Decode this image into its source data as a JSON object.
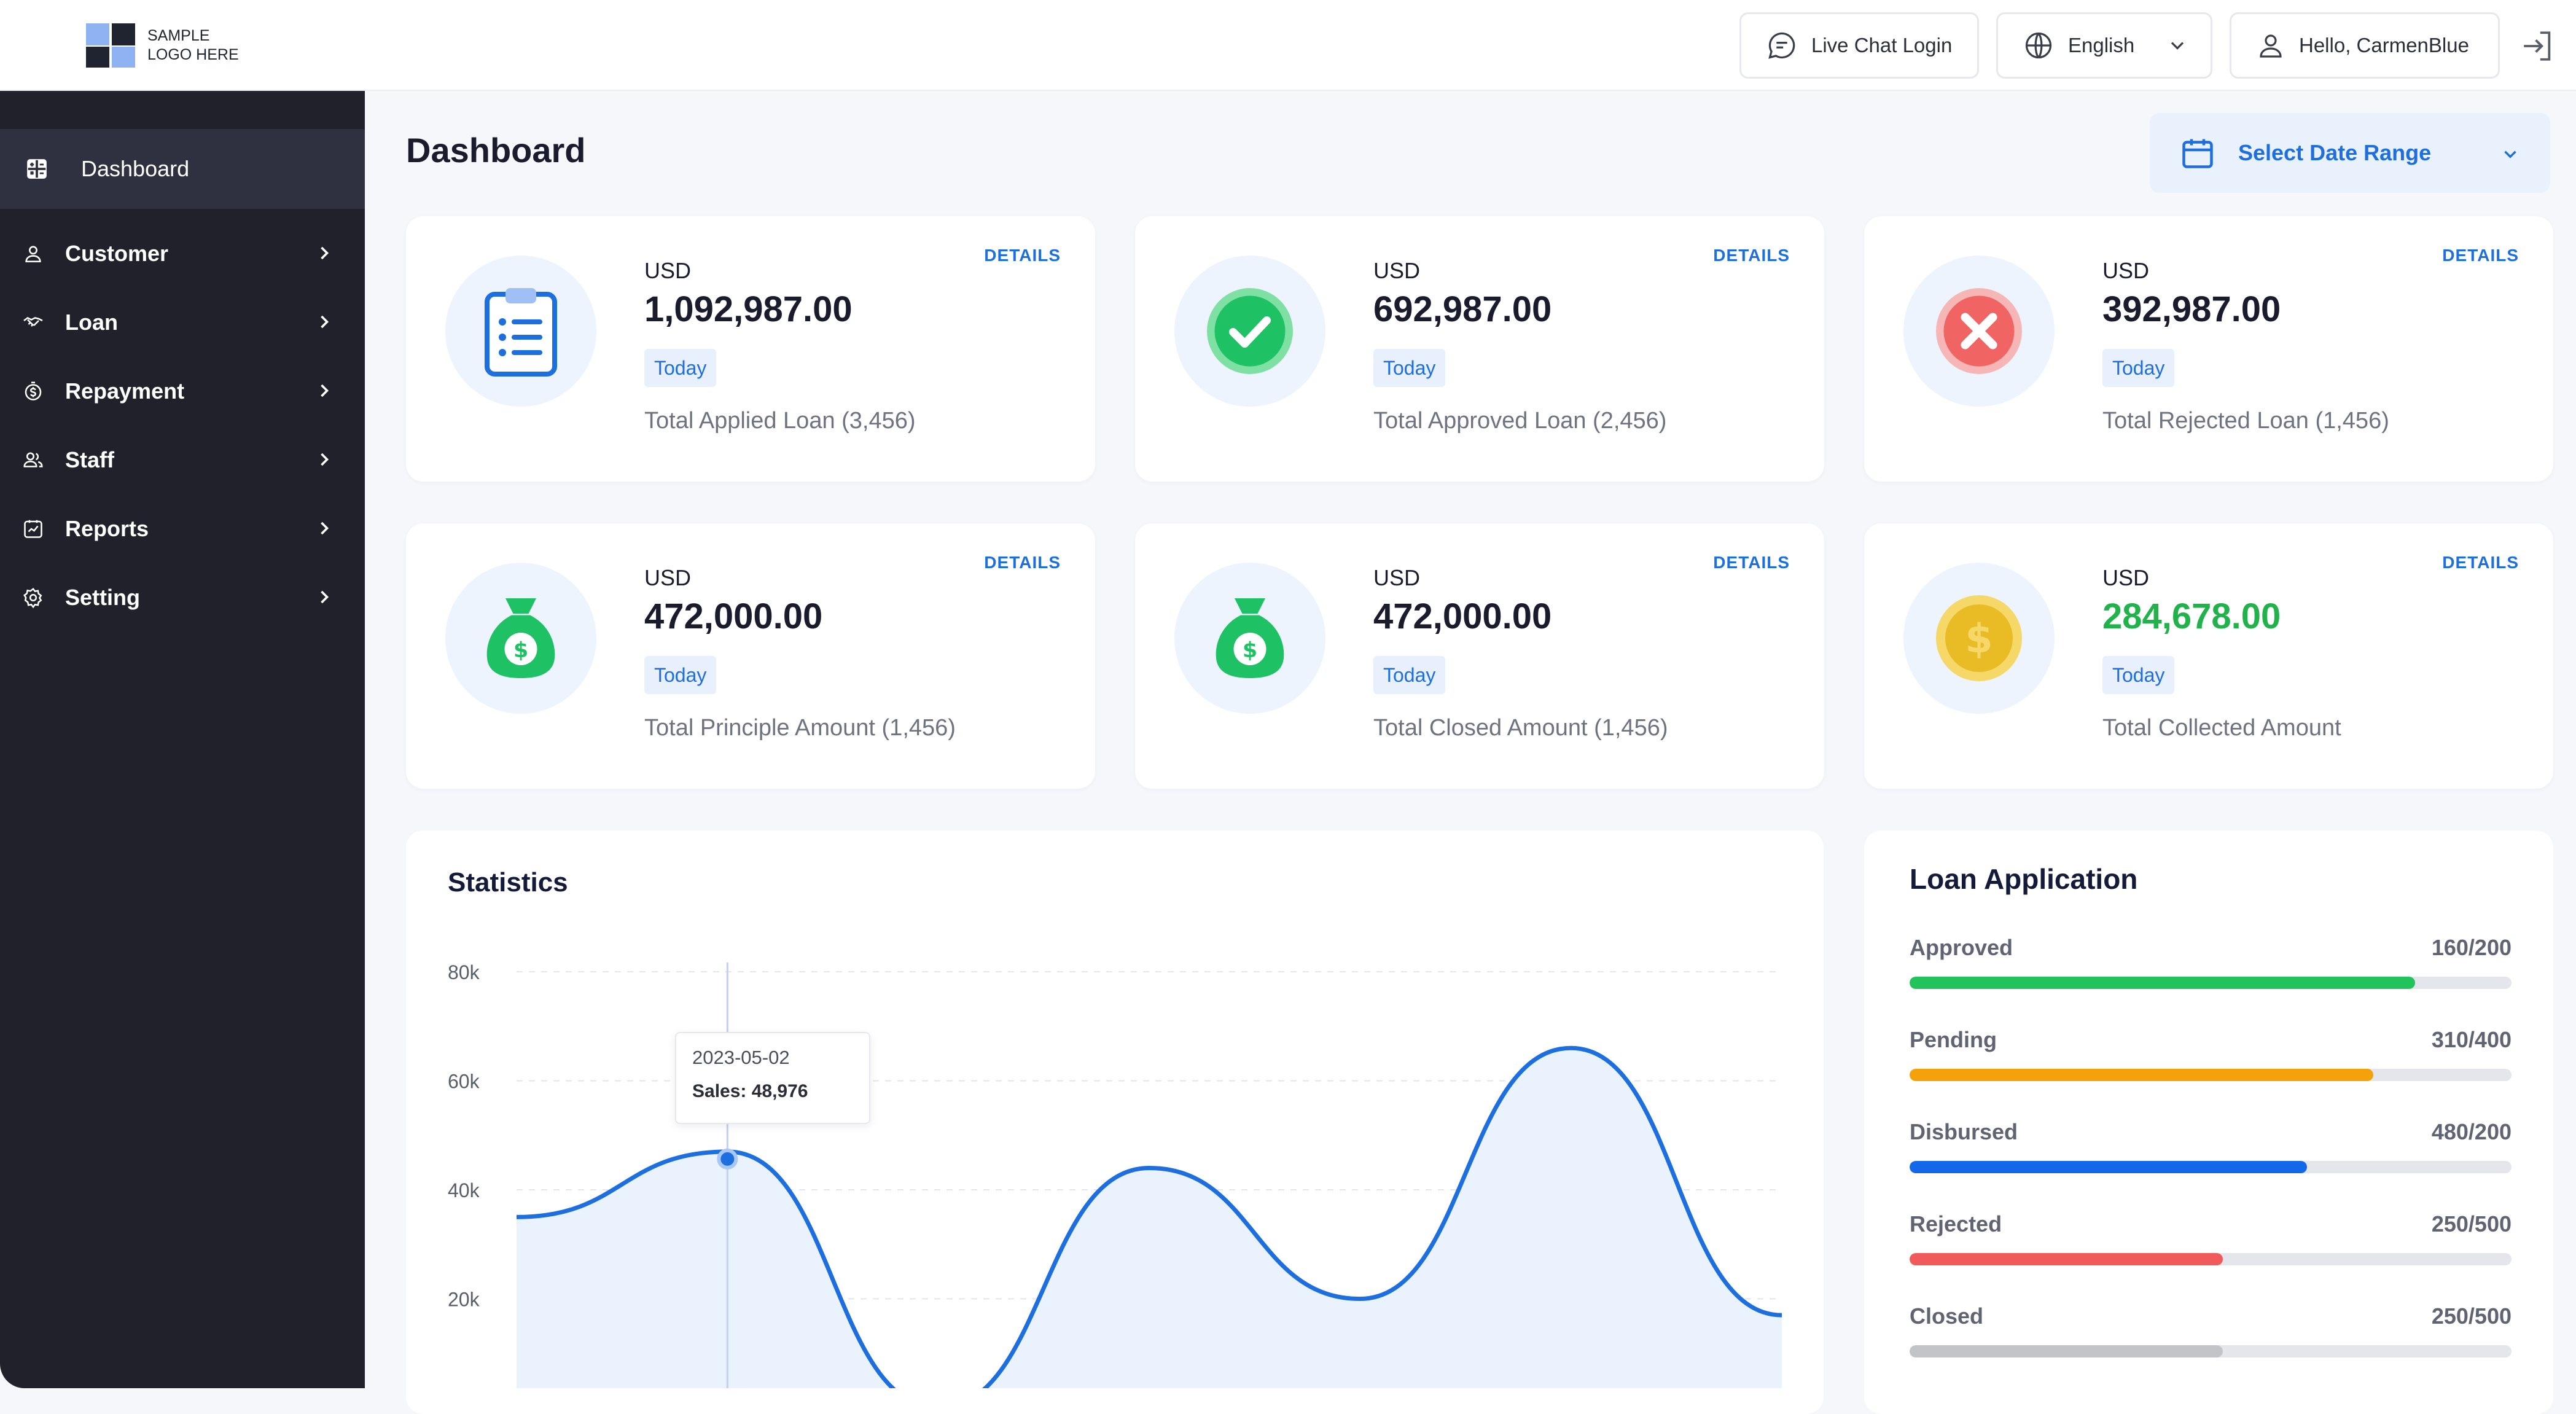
{
  "logo": {
    "text": "SAMPLE LOGO HERE",
    "colors": {
      "dark": "#1f2430",
      "light": "#8fb3f2"
    }
  },
  "topbar": {
    "live_chat_label": "Live Chat Login",
    "language_label": "English",
    "greeting_label": "Hello, CarmenBlue"
  },
  "sidebar": {
    "items": [
      {
        "label": "Dashboard",
        "icon": "dashboard-icon",
        "active": true
      },
      {
        "label": "Customer",
        "icon": "user-icon"
      },
      {
        "label": "Loan",
        "icon": "handshake-icon"
      },
      {
        "label": "Repayment",
        "icon": "dollar-icon"
      },
      {
        "label": "Staff",
        "icon": "users-icon"
      },
      {
        "label": "Reports",
        "icon": "report-icon"
      },
      {
        "label": "Setting",
        "icon": "gear-icon"
      }
    ]
  },
  "page": {
    "title": "Dashboard",
    "date_range_label": "Select Date Range"
  },
  "cards": [
    {
      "currency": "USD",
      "amount": "1,092,987.00",
      "badge": "Today",
      "description": "Total Applied Loan (3,456)",
      "details": "DETAILS",
      "icon": "clipboard-list-icon"
    },
    {
      "currency": "USD",
      "amount": "692,987.00",
      "badge": "Today",
      "description": "Total Approved Loan (2,456)",
      "details": "DETAILS",
      "icon": "check-circle-icon"
    },
    {
      "currency": "USD",
      "amount": "392,987.00",
      "badge": "Today",
      "description": "Total Rejected Loan (1,456)",
      "details": "DETAILS",
      "icon": "x-circle-icon"
    },
    {
      "currency": "USD",
      "amount": "472,000.00",
      "badge": "Today",
      "description": "Total Principle Amount (1,456)",
      "details": "DETAILS",
      "icon": "money-bag-icon"
    },
    {
      "currency": "USD",
      "amount": "472,000.00",
      "badge": "Today",
      "description": "Total Closed Amount (1,456)",
      "details": "DETAILS",
      "icon": "money-bag-icon"
    },
    {
      "currency": "USD",
      "amount": "284,678.00",
      "badge": "Today",
      "description": "Total Collected Amount",
      "details": "DETAILS",
      "icon": "coin-icon",
      "amount_color": "#22b24c"
    }
  ],
  "statistics": {
    "title": "Statistics",
    "tooltip": {
      "date": "2023-05-02",
      "label": "Sales: 48,976"
    }
  },
  "chart_data": {
    "type": "area",
    "title": "Statistics",
    "y_ticks": [
      "80k",
      "60k",
      "40k",
      "20k"
    ],
    "ylim": [
      0,
      80000
    ],
    "series": [
      {
        "points": [
          {
            "x": 0,
            "y": 35000
          },
          {
            "x": 1,
            "y": 47000
          },
          {
            "x": 2,
            "y": 0
          },
          {
            "x": 3,
            "y": 44000
          },
          {
            "x": 4,
            "y": 20000
          },
          {
            "x": 5,
            "y": 66000
          },
          {
            "x": 6,
            "y": 17000
          }
        ]
      }
    ],
    "highlight": {
      "x": 1,
      "y": 48976,
      "date": "2023-05-02"
    },
    "grid": true,
    "colors": {
      "line": "#1d6fe0",
      "fill": "#eaf2fd"
    }
  },
  "loan_application": {
    "title": "Loan Application",
    "rows": [
      {
        "label": "Approved",
        "value": "160/200",
        "fill": 0.84,
        "color": "#22c35a"
      },
      {
        "label": "Pending",
        "value": "310/400",
        "fill": 0.77,
        "color": "#f5a20a"
      },
      {
        "label": "Disbursed",
        "value": "480/200",
        "fill": 0.66,
        "color": "#1268e8"
      },
      {
        "label": "Rejected",
        "value": "250/500",
        "fill": 0.52,
        "color": "#f15a5a"
      },
      {
        "label": "Closed",
        "value": "250/500",
        "fill": 0.52,
        "color": "#c3c4c8"
      }
    ]
  }
}
